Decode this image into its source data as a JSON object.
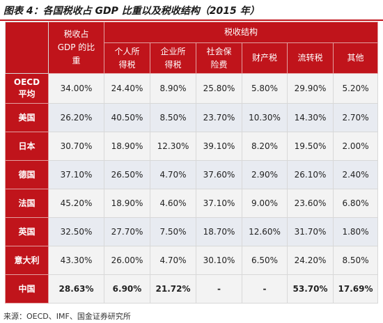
{
  "title": "图表 4：各国税收占 GDP 比重以及税收结构（2015 年）",
  "headers": {
    "gdp_ratio_lines": [
      "税收占",
      "GDP 的比",
      "重"
    ],
    "structure": "税收结构",
    "cols": [
      [
        "个人所",
        "得税"
      ],
      [
        "企业所",
        "得税"
      ],
      [
        "社会保",
        "险费"
      ],
      [
        "财产税"
      ],
      [
        "流转税"
      ],
      [
        "其他"
      ]
    ]
  },
  "rows": [
    {
      "name_lines": [
        "OECD",
        "平均"
      ],
      "values": [
        "34.00%",
        "24.40%",
        "8.90%",
        "25.80%",
        "5.80%",
        "29.90%",
        "5.20%"
      ]
    },
    {
      "name_lines": [
        "美国"
      ],
      "values": [
        "26.20%",
        "40.50%",
        "8.50%",
        "23.70%",
        "10.30%",
        "14.30%",
        "2.70%"
      ]
    },
    {
      "name_lines": [
        "日本"
      ],
      "values": [
        "30.70%",
        "18.90%",
        "12.30%",
        "39.10%",
        "8.20%",
        "19.50%",
        "2.00%"
      ]
    },
    {
      "name_lines": [
        "德国"
      ],
      "values": [
        "37.10%",
        "26.50%",
        "4.70%",
        "37.60%",
        "2.90%",
        "26.10%",
        "2.40%"
      ]
    },
    {
      "name_lines": [
        "法国"
      ],
      "values": [
        "45.20%",
        "18.90%",
        "4.60%",
        "37.10%",
        "9.00%",
        "23.60%",
        "6.80%"
      ]
    },
    {
      "name_lines": [
        "英国"
      ],
      "values": [
        "32.50%",
        "27.70%",
        "7.50%",
        "18.70%",
        "12.60%",
        "31.70%",
        "1.80%"
      ]
    },
    {
      "name_lines": [
        "意大利"
      ],
      "values": [
        "43.30%",
        "26.00%",
        "4.70%",
        "30.10%",
        "6.50%",
        "24.20%",
        "8.50%"
      ]
    },
    {
      "name_lines": [
        "中国"
      ],
      "values": [
        "28.63%",
        "6.90%",
        "21.72%",
        "-",
        "-",
        "53.70%",
        "17.69%"
      ]
    }
  ],
  "source": "来源：OECD、IMF、国金证券研究所",
  "colors": {
    "header_red": "#c0141b",
    "cell_bg": "#f3f3f3",
    "cell_alt_bg": "#e8ebf1"
  }
}
